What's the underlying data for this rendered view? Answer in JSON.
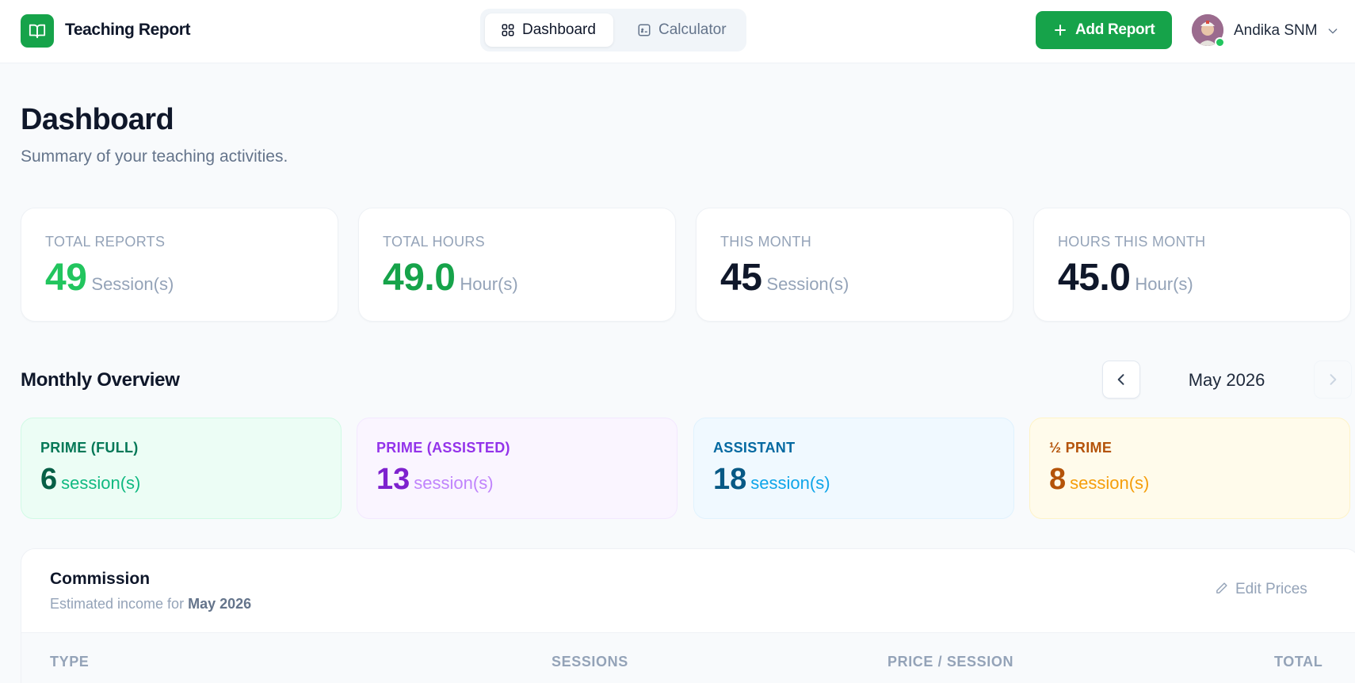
{
  "header": {
    "app_title": "Teaching Report",
    "logo_icon": "book-icon",
    "nav": {
      "dashboard_label": "Dashboard",
      "calculator_label": "Calculator",
      "active": "Dashboard"
    },
    "add_report_label": "Add Report",
    "user_name": "Andika SNM",
    "user_status": "online"
  },
  "page": {
    "title": "Dashboard",
    "subtitle": "Summary of your teaching activities."
  },
  "stats": [
    {
      "label": "TOTAL REPORTS",
      "value": "49",
      "unit": "Session(s)",
      "color": "#22c55e"
    },
    {
      "label": "TOTAL HOURS",
      "value": "49.0",
      "unit": "Hour(s)",
      "color": "#16a34a"
    },
    {
      "label": "THIS MONTH",
      "value": "45",
      "unit": "Session(s)",
      "color": "#0f172a"
    },
    {
      "label": "HOURS THIS MONTH",
      "value": "45.0",
      "unit": "Hour(s)",
      "color": "#0f172a"
    }
  ],
  "monthly": {
    "title": "Monthly Overview",
    "month": "May 2026",
    "types": [
      {
        "label": "PRIME (FULL)",
        "value": "6",
        "unit": "session(s)",
        "bg": "#ecfdf5",
        "border": "#d1fae5",
        "label_color": "#047857",
        "value_color": "#065f46",
        "unit_color": "#10b981"
      },
      {
        "label": "PRIME (ASSISTED)",
        "value": "13",
        "unit": "session(s)",
        "bg": "#faf5ff",
        "border": "#f3e8ff",
        "label_color": "#9333ea",
        "value_color": "#7e22ce",
        "unit_color": "#c084fc"
      },
      {
        "label": "ASSISTANT",
        "value": "18",
        "unit": "session(s)",
        "bg": "#f0f9ff",
        "border": "#e0f2fe",
        "label_color": "#0369a1",
        "value_color": "#075985",
        "unit_color": "#0ea5e9"
      },
      {
        "label": "½ PRIME",
        "value": "8",
        "unit": "session(s)",
        "bg": "#fffbeb",
        "border": "#fef3c7",
        "label_color": "#b45309",
        "value_color": "#b45309",
        "unit_color": "#f59e0b"
      }
    ]
  },
  "commission": {
    "title": "Commission",
    "subtitle_prefix": "Estimated income for",
    "month": "May 2026",
    "edit_label": "Edit Prices",
    "columns": [
      "TYPE",
      "SESSIONS",
      "PRICE / SESSION",
      "TOTAL"
    ]
  }
}
